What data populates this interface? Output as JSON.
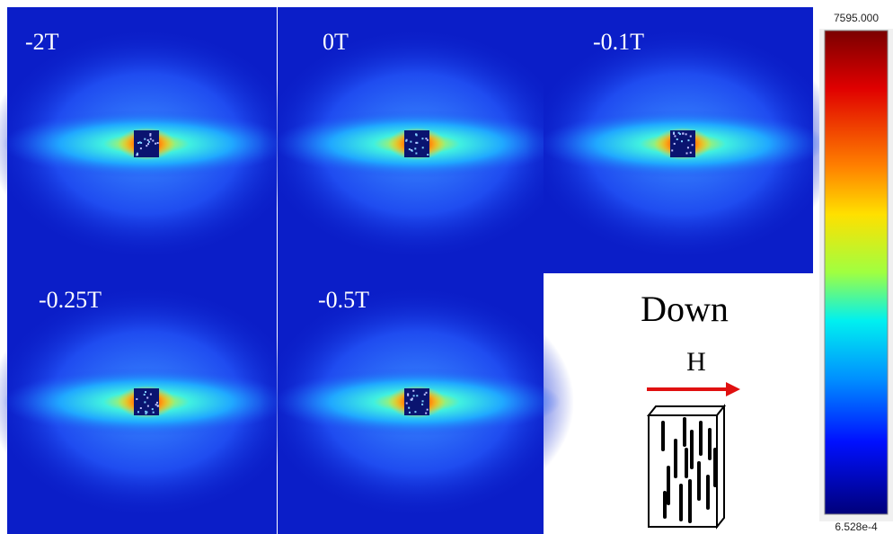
{
  "panels": [
    {
      "label": "-2T"
    },
    {
      "label": "0T"
    },
    {
      "label": "-0.1T"
    },
    {
      "label": "-0.25T"
    },
    {
      "label": "-0.5T"
    }
  ],
  "schematic": {
    "title": "Down",
    "field_label": "H"
  },
  "colorbar": {
    "max_label": "7595.000",
    "min_label": "6.528e-4"
  }
}
